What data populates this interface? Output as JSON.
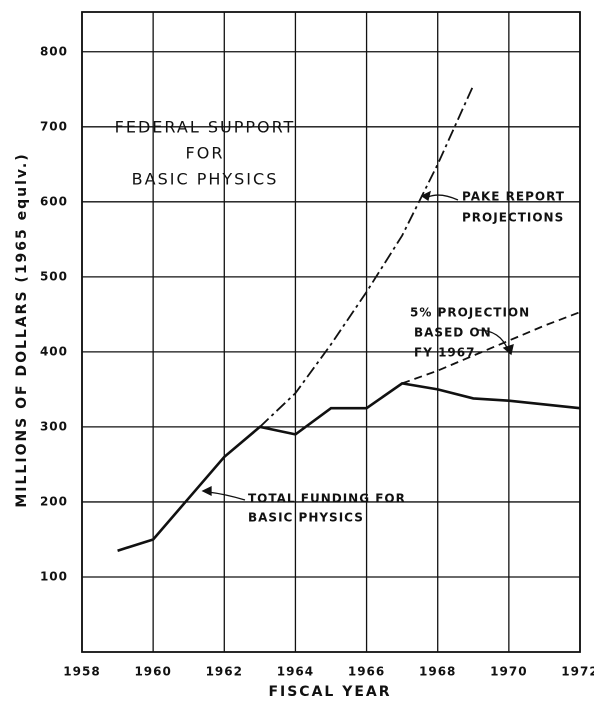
{
  "chart_data": {
    "type": "line",
    "annotations": [
      [
        "FEDERAL SUPPORT",
        "FOR",
        "BASIC PHYSICS"
      ],
      [
        "PAKE REPORT",
        "PROJECTIONS"
      ],
      [
        "5% PROJECTION",
        "BASED ON",
        "FY 1967"
      ],
      [
        "TOTAL FUNDING FOR",
        "BASIC PHYSICS"
      ]
    ],
    "xlabel": "FISCAL YEAR",
    "ylabel": "MILLIONS OF DOLLARS (1965 equlv.)",
    "series": [
      {
        "style": "solid",
        "color": "#111111",
        "x": [
          1959,
          1960,
          1961,
          1962,
          1963,
          1964,
          1965,
          1966,
          1967,
          1968,
          1969,
          1970,
          1971,
          1972
        ],
        "values": [
          135,
          150,
          205,
          260,
          300,
          290,
          325,
          325,
          358,
          350,
          338,
          335,
          330,
          325
        ]
      },
      {
        "style": "dashdot",
        "color": "#111111",
        "x": [
          1963,
          1964,
          1965,
          1966,
          1967,
          1968,
          1969
        ],
        "values": [
          300,
          345,
          410,
          480,
          555,
          650,
          755
        ]
      },
      {
        "style": "dashed",
        "color": "#111111",
        "x": [
          1967,
          1968,
          1969,
          1970,
          1971,
          1972
        ],
        "values": [
          358,
          375,
          395,
          415,
          435,
          453
        ]
      }
    ],
    "xlim": [
      1958,
      1972
    ],
    "xticks": [
      1958,
      1960,
      1962,
      1964,
      1966,
      1968,
      1970,
      1972
    ],
    "ylim": [
      0,
      853
    ],
    "yticks": [
      100,
      200,
      300,
      400,
      500,
      600,
      700,
      800
    ],
    "grid": true
  }
}
